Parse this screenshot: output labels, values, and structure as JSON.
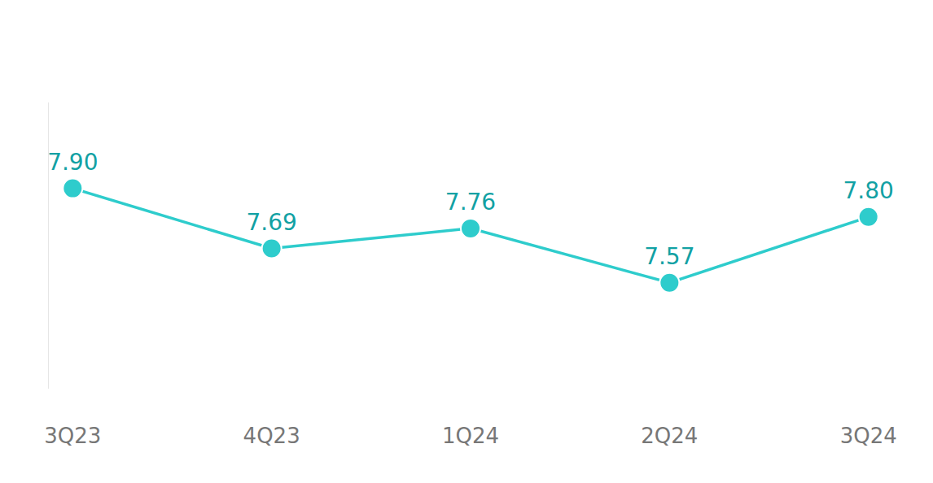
{
  "chart_data": {
    "type": "line",
    "categories": [
      "3Q23",
      "4Q23",
      "1Q24",
      "2Q24",
      "3Q24"
    ],
    "values": [
      7.9,
      7.69,
      7.76,
      7.57,
      7.8
    ],
    "value_labels": [
      "7.90",
      "7.69",
      "7.76",
      "7.57",
      "7.80"
    ],
    "color": "#2ecccc",
    "marker": "circle",
    "ylim": [
      7.2,
      8.2
    ],
    "grid": false,
    "data_labels": true,
    "tick_labels": "x"
  }
}
